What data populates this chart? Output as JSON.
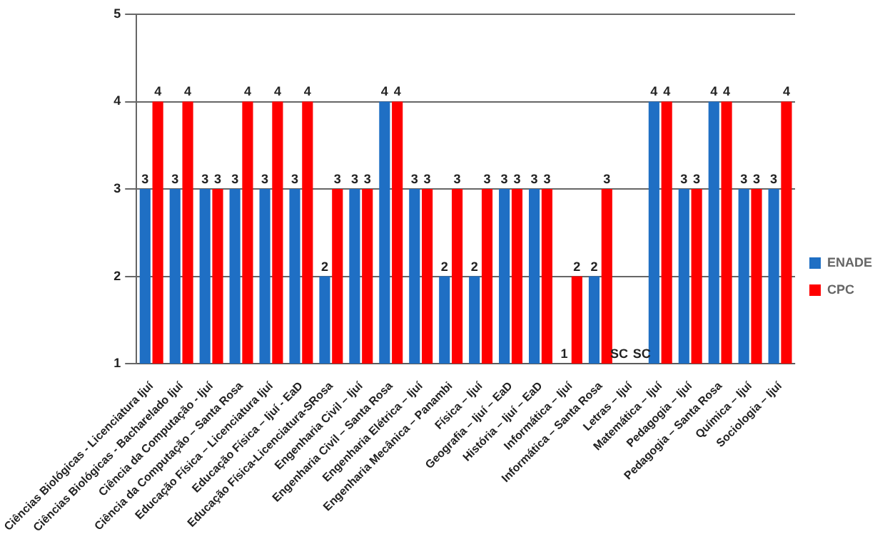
{
  "chart_data": {
    "type": "bar",
    "categories": [
      "Ciências Biológicas - Licenciatura Ijuí",
      "Ciências Biológicas - Bacharelado Ijuí",
      "Ciência da Computação - Ijuí",
      "Ciência da Computação – Santa Rosa",
      "Educação Física – Licenciatura Ijuí",
      "Educação Física – Ijuí - EaD",
      "Educação Física-Licenciatura-SRosa",
      "Engenharia Civil – Ijuí",
      "Engenharia Civil – Santa Rosa",
      "Engenharia Elétrica – Ijuí",
      "Engenharia Mecânica – Panambi",
      "Física – Ijuí",
      "Geografia – Ijuí – EaD",
      "História – Ijuí – EaD",
      "Informática – Ijuí",
      "Informática – Santa Rosa",
      "Letras – Ijuí",
      "Matemática – Ijuí",
      "Pedagogia – Ijuí",
      "Pedagogia – Santa Rosa",
      "Química – Ijuí",
      "Sociologia – Ijuí"
    ],
    "series": [
      {
        "name": "ENADE",
        "color": "#1f6fc4",
        "values": [
          3,
          3,
          3,
          3,
          3,
          3,
          2,
          3,
          4,
          3,
          2,
          2,
          3,
          3,
          1,
          2,
          1,
          4,
          3,
          4,
          3,
          3
        ],
        "value_labels": [
          "3",
          "3",
          "3",
          "3",
          "3",
          "3",
          "2",
          "3",
          "4",
          "3",
          "2",
          "2",
          "3",
          "3",
          "1",
          "2",
          "SC",
          "4",
          "3",
          "4",
          "3",
          "3"
        ]
      },
      {
        "name": "CPC",
        "color": "#ff0000",
        "values": [
          4,
          4,
          3,
          4,
          4,
          4,
          3,
          3,
          4,
          3,
          3,
          3,
          3,
          3,
          2,
          3,
          1,
          4,
          3,
          4,
          3,
          4
        ],
        "value_labels": [
          "4",
          "4",
          "3",
          "4",
          "4",
          "4",
          "3",
          "3",
          "4",
          "3",
          "3",
          "3",
          "3",
          "3",
          "2",
          "3",
          "SC",
          "4",
          "3",
          "4",
          "3",
          "4"
        ]
      }
    ],
    "ylim": [
      1,
      5
    ],
    "yticks": [
      1,
      2,
      3,
      4,
      5
    ],
    "grid": "y",
    "legend": "right"
  }
}
